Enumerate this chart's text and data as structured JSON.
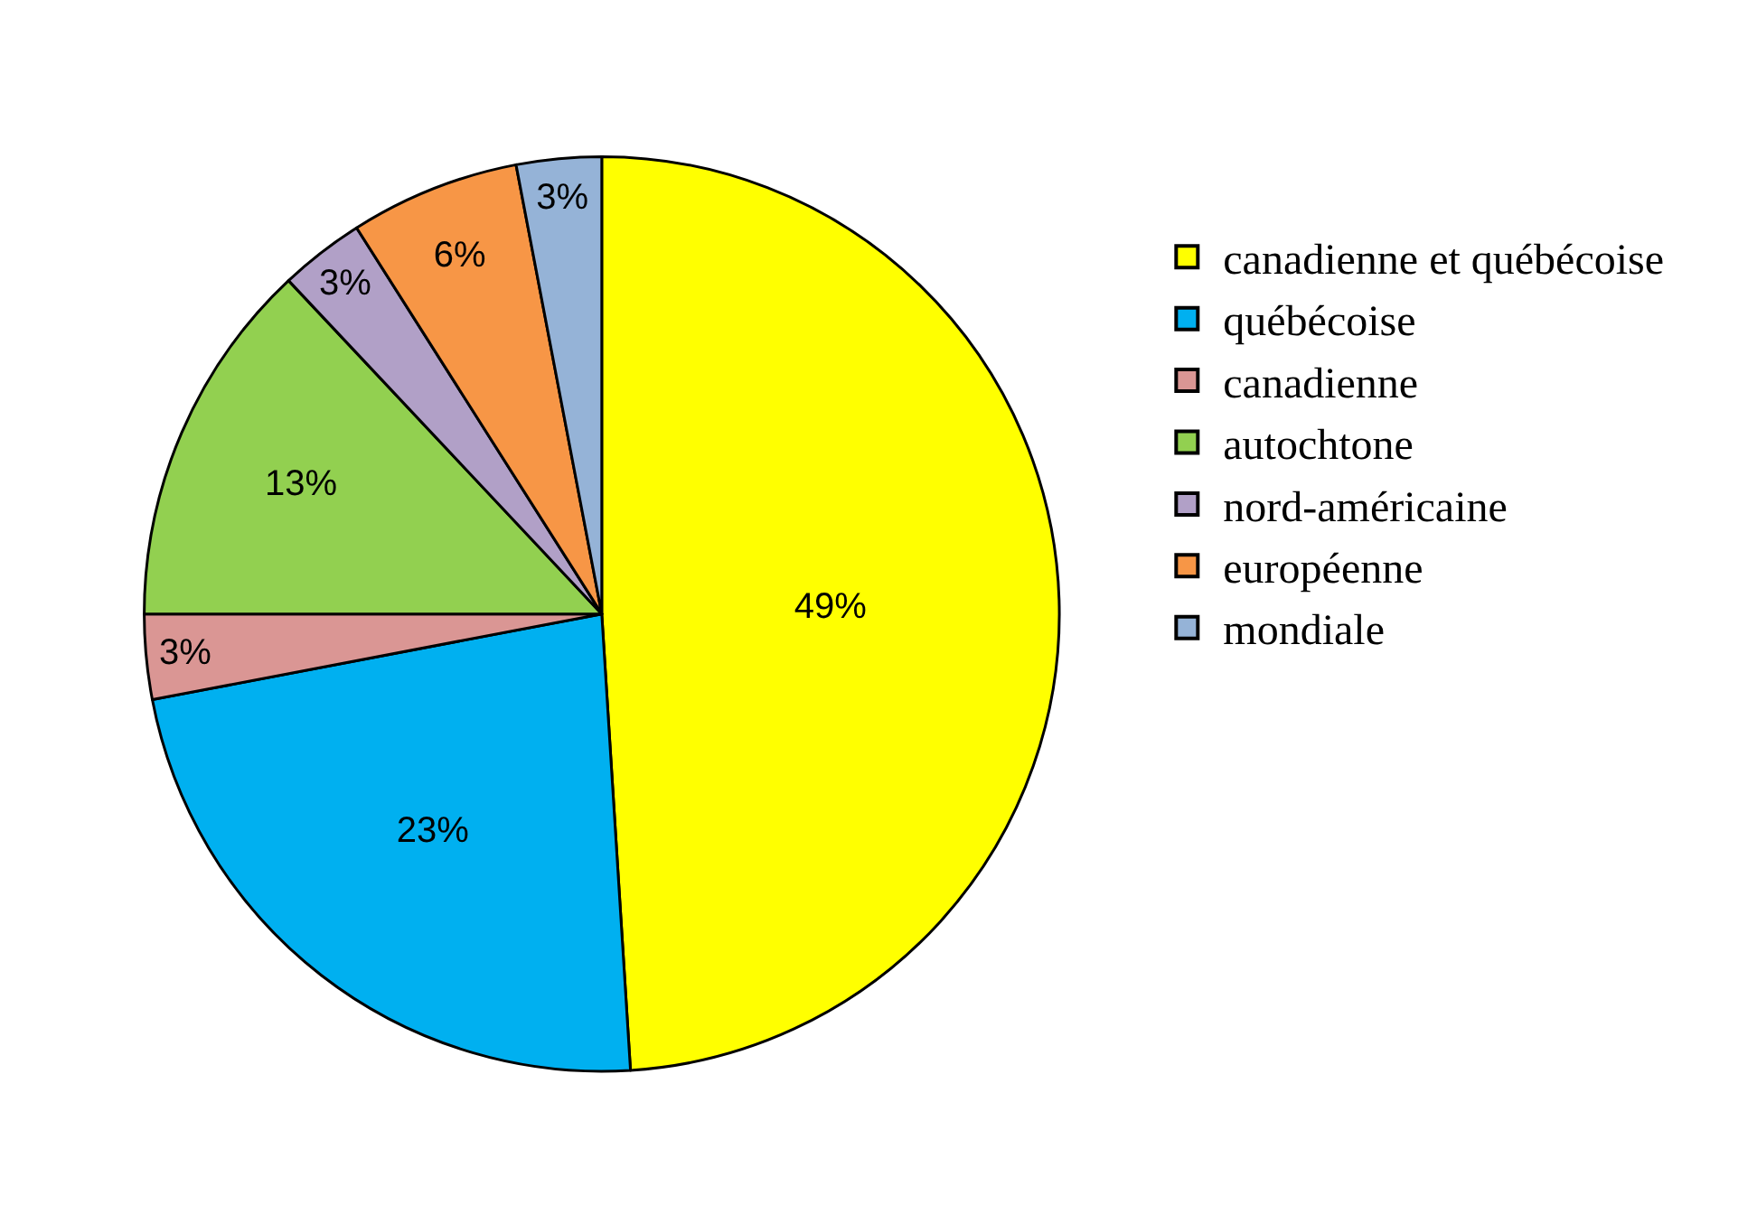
{
  "chart_data": {
    "type": "pie",
    "categories": [
      "canadienne et québécoise",
      "québécoise",
      "canadienne",
      "autochtone",
      "nord-américaine",
      "européenne",
      "mondiale"
    ],
    "values": [
      49,
      23,
      3,
      13,
      3,
      6,
      3
    ],
    "value_labels": [
      "49%",
      "23%",
      "3%",
      "13%",
      "3%",
      "6%",
      "3%"
    ],
    "colors": [
      "#ffff00",
      "#00b0f0",
      "#da9694",
      "#92d050",
      "#b1a0c7",
      "#f79646",
      "#95b3d7"
    ],
    "legend": "right"
  }
}
